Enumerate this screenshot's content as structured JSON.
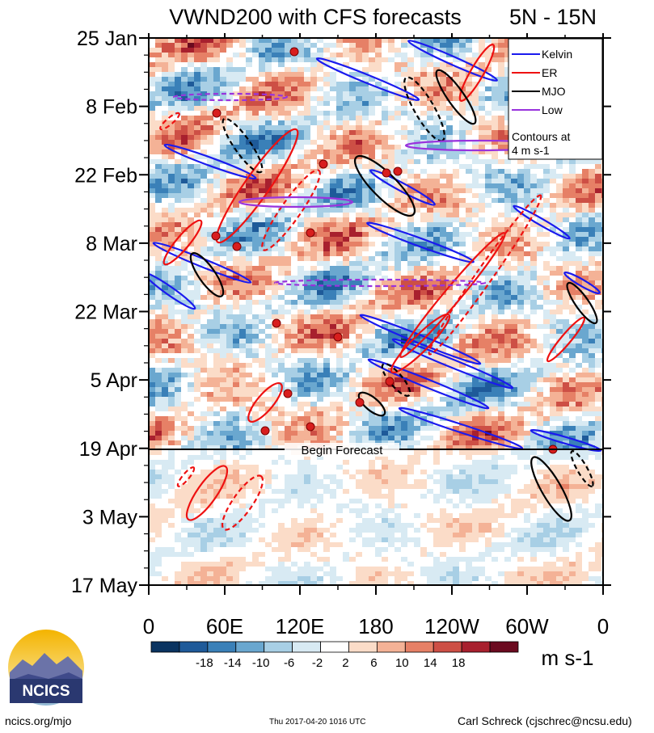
{
  "chart_data": {
    "type": "heatmap",
    "title": "VWND200 with CFS forecasts",
    "subtitle": "5N - 15N",
    "x_ticks": [
      "0",
      "60E",
      "120E",
      "180",
      "120W",
      "60W",
      "0"
    ],
    "y_ticks": [
      "25 Jan",
      "8 Feb",
      "22 Feb",
      "8 Mar",
      "22 Mar",
      "5 Apr",
      "19 Apr",
      "3 May",
      "17 May"
    ],
    "forecast_label": "Begin Forecast",
    "forecast_start": "19 Apr",
    "colorbar": {
      "unit": "m s-1",
      "tick_labels": [
        "-18",
        "-14",
        "-10",
        "-6",
        "-2",
        "2",
        "6",
        "10",
        "14",
        "18"
      ],
      "colors": [
        "#0a3360",
        "#1e5a99",
        "#3a80b8",
        "#6aa7cf",
        "#a8cfe5",
        "#d8eaf3",
        "#ffffff",
        "#fbdcc8",
        "#f4b296",
        "#e68066",
        "#cd4f45",
        "#a8202e",
        "#6b0a1f"
      ]
    },
    "legend": {
      "position": "top-right",
      "items": [
        {
          "label": "Kelvin",
          "color": "#1a1aee"
        },
        {
          "label": "ER",
          "color": "#ee1111"
        },
        {
          "label": "MJO",
          "color": "#000000"
        },
        {
          "label": "Low",
          "color": "#9933dd"
        }
      ],
      "note_line1": "Contours at",
      "note_line2": "4 m s-1"
    },
    "contour_level": 4,
    "contour_level_unit": "m s-1"
  },
  "logo": {
    "text": "NCICS"
  },
  "footer": {
    "left": "ncics.org/mjo",
    "center": "Thu 2017-04-20 1016 UTC",
    "right": "Carl Schreck (cjschrec@ncsu.edu)"
  }
}
